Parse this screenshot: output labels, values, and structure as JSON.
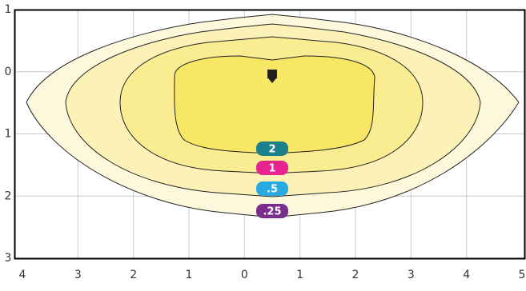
{
  "chart_data": {
    "type": "contour",
    "values": [
      0.25,
      0.5,
      1,
      2
    ],
    "value_labels": [
      ".25",
      ".5",
      "1",
      "2"
    ],
    "colors": [
      "#fdf8dc",
      "#fcf2b8",
      "#faec90",
      "#f8e764"
    ],
    "label_colors": [
      "#7b2d8e",
      "#29abe2",
      "#e6238f",
      "#1b7f8c"
    ],
    "xlim": [
      -4,
      5
    ],
    "xticks": [
      {
        "value": -4,
        "label": "4"
      },
      {
        "value": -3,
        "label": "3"
      },
      {
        "value": -2,
        "label": "2"
      },
      {
        "value": -1,
        "label": "1"
      },
      0,
      1,
      2,
      3,
      4,
      5
    ],
    "ylim": [
      -1,
      3
    ],
    "yticks": [
      {
        "value": -1,
        "label": "1"
      },
      0,
      1,
      2,
      3
    ],
    "grid": true
  }
}
